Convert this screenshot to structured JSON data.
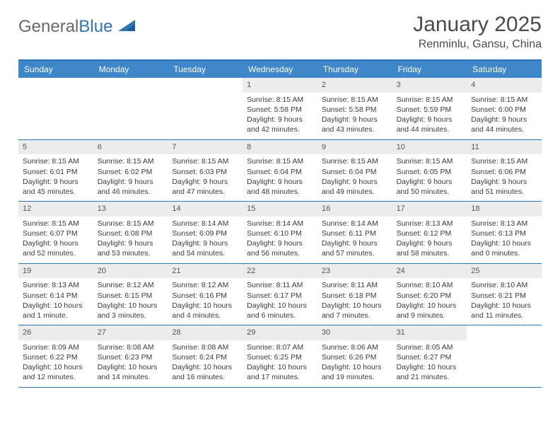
{
  "logo": {
    "word1": "General",
    "word2": "Blue"
  },
  "title": {
    "month": "January 2025",
    "location": "Renminlu, Gansu, China"
  },
  "colors": {
    "header_bar": "#3f87c9",
    "rule": "#2f75b5",
    "daynum_bg": "#ececec",
    "logo_gray": "#6a6a6a"
  },
  "weekdays": [
    "Sunday",
    "Monday",
    "Tuesday",
    "Wednesday",
    "Thursday",
    "Friday",
    "Saturday"
  ],
  "weeks": [
    [
      null,
      null,
      null,
      {
        "n": "1",
        "sr": "Sunrise: 8:15 AM",
        "ss": "Sunset: 5:58 PM",
        "d1": "Daylight: 9 hours",
        "d2": "and 42 minutes."
      },
      {
        "n": "2",
        "sr": "Sunrise: 8:15 AM",
        "ss": "Sunset: 5:58 PM",
        "d1": "Daylight: 9 hours",
        "d2": "and 43 minutes."
      },
      {
        "n": "3",
        "sr": "Sunrise: 8:15 AM",
        "ss": "Sunset: 5:59 PM",
        "d1": "Daylight: 9 hours",
        "d2": "and 44 minutes."
      },
      {
        "n": "4",
        "sr": "Sunrise: 8:15 AM",
        "ss": "Sunset: 6:00 PM",
        "d1": "Daylight: 9 hours",
        "d2": "and 44 minutes."
      }
    ],
    [
      {
        "n": "5",
        "sr": "Sunrise: 8:15 AM",
        "ss": "Sunset: 6:01 PM",
        "d1": "Daylight: 9 hours",
        "d2": "and 45 minutes."
      },
      {
        "n": "6",
        "sr": "Sunrise: 8:15 AM",
        "ss": "Sunset: 6:02 PM",
        "d1": "Daylight: 9 hours",
        "d2": "and 46 minutes."
      },
      {
        "n": "7",
        "sr": "Sunrise: 8:15 AM",
        "ss": "Sunset: 6:03 PM",
        "d1": "Daylight: 9 hours",
        "d2": "and 47 minutes."
      },
      {
        "n": "8",
        "sr": "Sunrise: 8:15 AM",
        "ss": "Sunset: 6:04 PM",
        "d1": "Daylight: 9 hours",
        "d2": "and 48 minutes."
      },
      {
        "n": "9",
        "sr": "Sunrise: 8:15 AM",
        "ss": "Sunset: 6:04 PM",
        "d1": "Daylight: 9 hours",
        "d2": "and 49 minutes."
      },
      {
        "n": "10",
        "sr": "Sunrise: 8:15 AM",
        "ss": "Sunset: 6:05 PM",
        "d1": "Daylight: 9 hours",
        "d2": "and 50 minutes."
      },
      {
        "n": "11",
        "sr": "Sunrise: 8:15 AM",
        "ss": "Sunset: 6:06 PM",
        "d1": "Daylight: 9 hours",
        "d2": "and 51 minutes."
      }
    ],
    [
      {
        "n": "12",
        "sr": "Sunrise: 8:15 AM",
        "ss": "Sunset: 6:07 PM",
        "d1": "Daylight: 9 hours",
        "d2": "and 52 minutes."
      },
      {
        "n": "13",
        "sr": "Sunrise: 8:15 AM",
        "ss": "Sunset: 6:08 PM",
        "d1": "Daylight: 9 hours",
        "d2": "and 53 minutes."
      },
      {
        "n": "14",
        "sr": "Sunrise: 8:14 AM",
        "ss": "Sunset: 6:09 PM",
        "d1": "Daylight: 9 hours",
        "d2": "and 54 minutes."
      },
      {
        "n": "15",
        "sr": "Sunrise: 8:14 AM",
        "ss": "Sunset: 6:10 PM",
        "d1": "Daylight: 9 hours",
        "d2": "and 56 minutes."
      },
      {
        "n": "16",
        "sr": "Sunrise: 8:14 AM",
        "ss": "Sunset: 6:11 PM",
        "d1": "Daylight: 9 hours",
        "d2": "and 57 minutes."
      },
      {
        "n": "17",
        "sr": "Sunrise: 8:13 AM",
        "ss": "Sunset: 6:12 PM",
        "d1": "Daylight: 9 hours",
        "d2": "and 58 minutes."
      },
      {
        "n": "18",
        "sr": "Sunrise: 8:13 AM",
        "ss": "Sunset: 6:13 PM",
        "d1": "Daylight: 10 hours",
        "d2": "and 0 minutes."
      }
    ],
    [
      {
        "n": "19",
        "sr": "Sunrise: 8:13 AM",
        "ss": "Sunset: 6:14 PM",
        "d1": "Daylight: 10 hours",
        "d2": "and 1 minute."
      },
      {
        "n": "20",
        "sr": "Sunrise: 8:12 AM",
        "ss": "Sunset: 6:15 PM",
        "d1": "Daylight: 10 hours",
        "d2": "and 3 minutes."
      },
      {
        "n": "21",
        "sr": "Sunrise: 8:12 AM",
        "ss": "Sunset: 6:16 PM",
        "d1": "Daylight: 10 hours",
        "d2": "and 4 minutes."
      },
      {
        "n": "22",
        "sr": "Sunrise: 8:11 AM",
        "ss": "Sunset: 6:17 PM",
        "d1": "Daylight: 10 hours",
        "d2": "and 6 minutes."
      },
      {
        "n": "23",
        "sr": "Sunrise: 8:11 AM",
        "ss": "Sunset: 6:18 PM",
        "d1": "Daylight: 10 hours",
        "d2": "and 7 minutes."
      },
      {
        "n": "24",
        "sr": "Sunrise: 8:10 AM",
        "ss": "Sunset: 6:20 PM",
        "d1": "Daylight: 10 hours",
        "d2": "and 9 minutes."
      },
      {
        "n": "25",
        "sr": "Sunrise: 8:10 AM",
        "ss": "Sunset: 6:21 PM",
        "d1": "Daylight: 10 hours",
        "d2": "and 11 minutes."
      }
    ],
    [
      {
        "n": "26",
        "sr": "Sunrise: 8:09 AM",
        "ss": "Sunset: 6:22 PM",
        "d1": "Daylight: 10 hours",
        "d2": "and 12 minutes."
      },
      {
        "n": "27",
        "sr": "Sunrise: 8:08 AM",
        "ss": "Sunset: 6:23 PM",
        "d1": "Daylight: 10 hours",
        "d2": "and 14 minutes."
      },
      {
        "n": "28",
        "sr": "Sunrise: 8:08 AM",
        "ss": "Sunset: 6:24 PM",
        "d1": "Daylight: 10 hours",
        "d2": "and 16 minutes."
      },
      {
        "n": "29",
        "sr": "Sunrise: 8:07 AM",
        "ss": "Sunset: 6:25 PM",
        "d1": "Daylight: 10 hours",
        "d2": "and 17 minutes."
      },
      {
        "n": "30",
        "sr": "Sunrise: 8:06 AM",
        "ss": "Sunset: 6:26 PM",
        "d1": "Daylight: 10 hours",
        "d2": "and 19 minutes."
      },
      {
        "n": "31",
        "sr": "Sunrise: 8:05 AM",
        "ss": "Sunset: 6:27 PM",
        "d1": "Daylight: 10 hours",
        "d2": "and 21 minutes."
      },
      null
    ]
  ]
}
